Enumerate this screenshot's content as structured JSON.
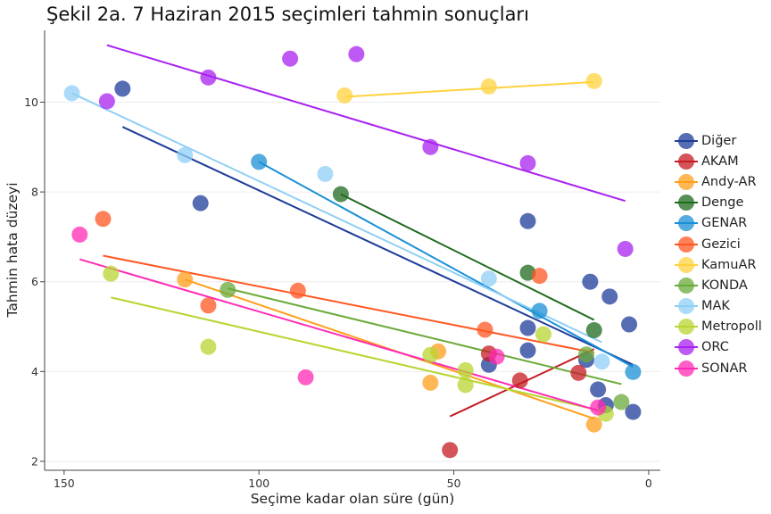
{
  "chart_data": {
    "type": "scatter",
    "title": "Şekil 2a. 7 Haziran 2015 seçimleri tahmin sonuçları",
    "xlabel": "Seçime kadar olan süre (gün)",
    "ylabel": "Tahmin hata düzeyi",
    "xlim": [
      155,
      -3
    ],
    "ylim": [
      1.8,
      11.6
    ],
    "x_ticks": [
      150,
      100,
      50,
      0
    ],
    "y_ticks": [
      2,
      4,
      6,
      8,
      10
    ],
    "x_reversed": true,
    "grid": "horizontal",
    "legend_position": "right",
    "fit_lines": true,
    "series": [
      {
        "name": "Diğer",
        "color": "#1f3c99",
        "points": [
          [
            135,
            10.3
          ],
          [
            115,
            7.75
          ],
          [
            31,
            7.35
          ],
          [
            31,
            4.97
          ],
          [
            31,
            4.47
          ],
          [
            41,
            4.15
          ],
          [
            16,
            4.26
          ],
          [
            15,
            6.0
          ],
          [
            10,
            5.67
          ],
          [
            5,
            5.05
          ],
          [
            13,
            3.6
          ],
          [
            11,
            3.25
          ],
          [
            4,
            3.1
          ]
        ],
        "fit": [
          [
            135,
            9.45
          ],
          [
            4,
            4.15
          ]
        ]
      },
      {
        "name": "AKAM",
        "color": "#c51b23",
        "points": [
          [
            51,
            2.25
          ],
          [
            41,
            4.4
          ],
          [
            33,
            3.8
          ],
          [
            18,
            3.97
          ]
        ],
        "fit": [
          [
            51,
            3.0
          ],
          [
            14,
            4.5
          ]
        ]
      },
      {
        "name": "Andy-AR",
        "color": "#ff9f1c",
        "points": [
          [
            119,
            6.05
          ],
          [
            54,
            4.45
          ],
          [
            56,
            3.75
          ],
          [
            14,
            2.82
          ]
        ],
        "fit": [
          [
            119,
            6.05
          ],
          [
            14,
            2.95
          ]
        ]
      },
      {
        "name": "Denge",
        "color": "#1e6b1e",
        "points": [
          [
            79,
            7.95
          ],
          [
            31,
            6.2
          ],
          [
            14,
            4.92
          ]
        ],
        "fit": [
          [
            79,
            7.95
          ],
          [
            14,
            5.15
          ]
        ]
      },
      {
        "name": "GENAR",
        "color": "#1a8fd6",
        "points": [
          [
            100,
            8.67
          ],
          [
            28,
            5.35
          ],
          [
            4,
            3.99
          ]
        ],
        "fit": [
          [
            100,
            8.67
          ],
          [
            4,
            4.1
          ]
        ]
      },
      {
        "name": "Gezici",
        "color": "#ff5722",
        "points": [
          [
            140,
            7.4
          ],
          [
            113,
            5.47
          ],
          [
            90,
            5.8
          ],
          [
            42,
            4.93
          ],
          [
            28,
            6.13
          ]
        ],
        "fit": [
          [
            140,
            6.58
          ],
          [
            14,
            4.42
          ]
        ]
      },
      {
        "name": "KamuAR",
        "color": "#ffd23f",
        "points": [
          [
            78,
            10.15
          ],
          [
            41,
            10.35
          ],
          [
            14,
            10.47
          ]
        ],
        "fit": [
          [
            78,
            10.12
          ],
          [
            14,
            10.45
          ]
        ]
      },
      {
        "name": "KONDA",
        "color": "#6aaa3a",
        "points": [
          [
            108,
            5.82
          ],
          [
            16,
            4.38
          ],
          [
            7,
            3.32
          ]
        ],
        "fit": [
          [
            108,
            5.85
          ],
          [
            7,
            3.72
          ]
        ]
      },
      {
        "name": "MAK",
        "color": "#8fcff5",
        "points": [
          [
            148,
            10.2
          ],
          [
            119,
            8.82
          ],
          [
            83,
            8.4
          ],
          [
            41,
            6.07
          ],
          [
            12,
            4.22
          ]
        ],
        "fit": [
          [
            148,
            10.2
          ],
          [
            12,
            4.65
          ]
        ]
      },
      {
        "name": "Metropoll",
        "color": "#b7d630",
        "points": [
          [
            138,
            6.18
          ],
          [
            113,
            4.55
          ],
          [
            56,
            4.37
          ],
          [
            47,
            4.03
          ],
          [
            47,
            3.7
          ],
          [
            27,
            4.83
          ],
          [
            11,
            3.06
          ]
        ],
        "fit": [
          [
            138,
            5.65
          ],
          [
            11,
            3.1
          ]
        ]
      },
      {
        "name": "ORC",
        "color": "#a821f0",
        "points": [
          [
            139,
            10.02
          ],
          [
            113,
            10.55
          ],
          [
            92,
            10.97
          ],
          [
            75,
            11.07
          ],
          [
            56,
            9.0
          ],
          [
            31,
            8.64
          ],
          [
            6,
            6.73
          ]
        ],
        "fit": [
          [
            139,
            11.27
          ],
          [
            6,
            7.8
          ]
        ]
      },
      {
        "name": "SONAR",
        "color": "#ff2ab4",
        "points": [
          [
            146,
            7.05
          ],
          [
            88,
            3.87
          ],
          [
            39,
            4.33
          ],
          [
            13,
            3.2
          ]
        ],
        "fit": [
          [
            146,
            6.5
          ],
          [
            13,
            3.13
          ]
        ]
      }
    ]
  }
}
